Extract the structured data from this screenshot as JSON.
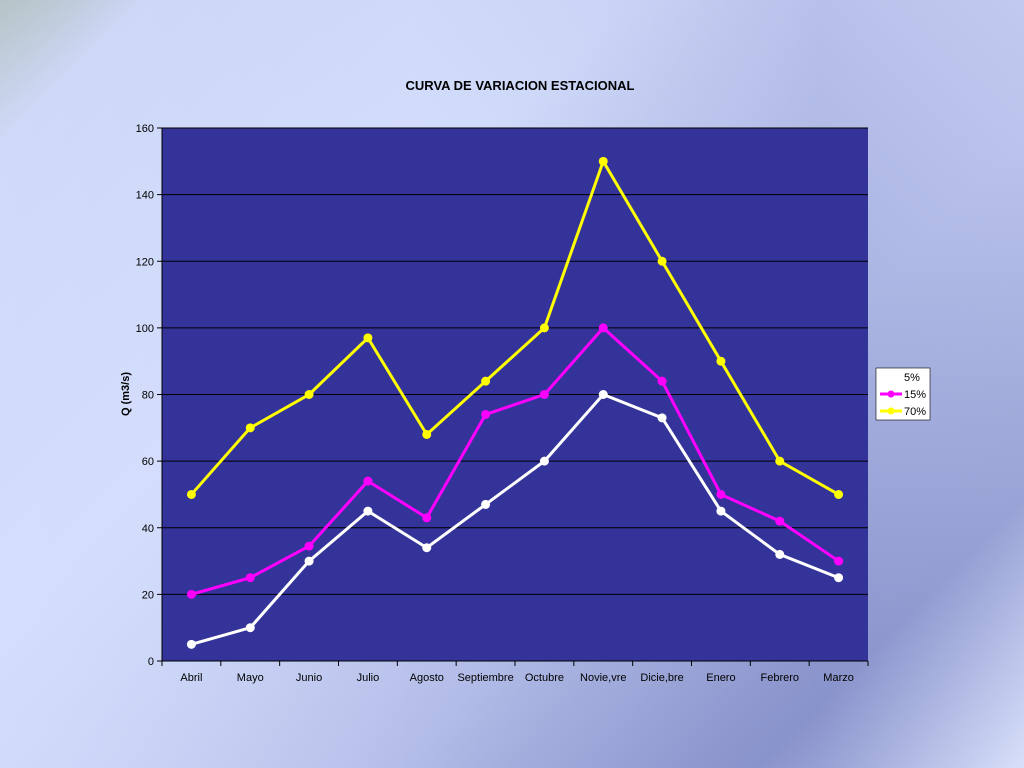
{
  "colors": {
    "plot_background": "#333399",
    "gridline": "#000000",
    "legend_background": "#ffffff"
  },
  "chart_data": {
    "type": "line",
    "title": "CURVA DE VARIACION ESTACIONAL",
    "xlabel": "",
    "ylabel": "Q (m3/s)",
    "ylim": [
      0,
      160
    ],
    "yticks": [
      0,
      20,
      40,
      60,
      80,
      100,
      120,
      140,
      160
    ],
    "grid": true,
    "legend_position": "right",
    "categories": [
      "Abril",
      "Mayo",
      "Junio",
      "Julio",
      "Agosto",
      "Septiembre",
      "Octubre",
      "Novie,vre",
      "Dicie,bre",
      "Enero",
      "Febrero",
      "Marzo"
    ],
    "series": [
      {
        "name": "5%",
        "color": "#ffffff",
        "values": [
          5,
          10,
          30,
          45,
          34,
          47,
          60,
          80,
          73,
          45,
          32,
          25
        ]
      },
      {
        "name": "15%",
        "color": "#ff00ff",
        "values": [
          20,
          25,
          34.5,
          54,
          43,
          74,
          80,
          100,
          84,
          50,
          42,
          30
        ]
      },
      {
        "name": "70%",
        "color": "#ffff00",
        "values": [
          50,
          70,
          80,
          97,
          68,
          84,
          100,
          150,
          120,
          90,
          60,
          50
        ]
      }
    ]
  }
}
